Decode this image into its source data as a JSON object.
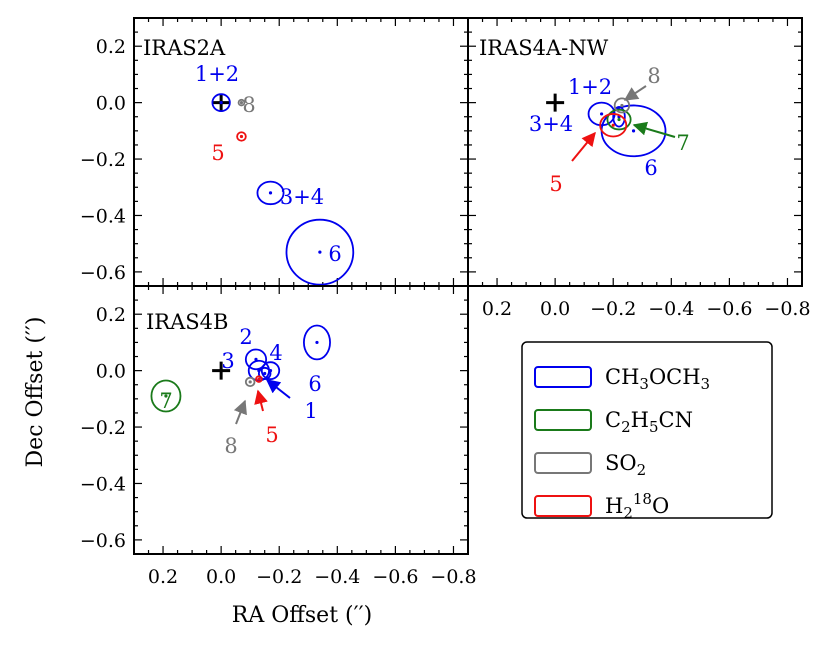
{
  "chart_data": {
    "type": "scatter",
    "xlabel": "RA Offset (′′)",
    "ylabel": "Dec Offset (′′)",
    "xlim": [
      0.3,
      -0.85
    ],
    "ylim": [
      -0.65,
      0.3
    ],
    "x_ticks": [
      0.2,
      0.0,
      -0.2,
      -0.4,
      -0.6,
      -0.8
    ],
    "x_tick_labels": [
      "0.2",
      "0.0",
      "−0.2",
      "−0.4",
      "−0.6",
      "−0.8"
    ],
    "y_ticks": [
      0.2,
      0.0,
      -0.2,
      -0.4,
      -0.6
    ],
    "y_tick_labels": [
      "0.2",
      "0.0",
      "−0.2",
      "−0.4",
      "−0.6"
    ],
    "colors": {
      "CH3OCH3": "#0000ee",
      "C2H5CN": "#1a7a1a",
      "SO2": "#777777",
      "H2_18O": "#ee1111",
      "source": "#000000"
    },
    "legend": {
      "placement": "lower-right",
      "entries": [
        {
          "key": "CH3OCH3",
          "parts": [
            [
              "CH",
              ""
            ],
            [
              "3",
              "sub"
            ],
            [
              "OCH",
              ""
            ],
            [
              "3",
              "sub"
            ]
          ]
        },
        {
          "key": "C2H5CN",
          "parts": [
            [
              "C",
              ""
            ],
            [
              "2",
              "sub"
            ],
            [
              "H",
              ""
            ],
            [
              "5",
              "sub"
            ],
            [
              "CN",
              ""
            ]
          ]
        },
        {
          "key": "SO2",
          "parts": [
            [
              "SO",
              ""
            ],
            [
              "2",
              "sub"
            ]
          ]
        },
        {
          "key": "H2_18O",
          "parts": [
            [
              "H",
              ""
            ],
            [
              "2",
              "sub"
            ],
            [
              "18",
              "sup"
            ],
            [
              "O",
              ""
            ]
          ]
        }
      ]
    },
    "panels": [
      {
        "name": "IRAS2A",
        "title": "IRAS2A",
        "show_x_ticklabels": false,
        "show_y_ticklabels": true,
        "components": [
          {
            "label": "1+2",
            "species": "CH3OCH3",
            "x": 0.0,
            "y": 0.0,
            "major": 0.06,
            "minor": 0.06
          },
          {
            "label": "8",
            "species": "SO2",
            "x": -0.07,
            "y": 0.0,
            "major": 0.02,
            "minor": 0.02
          },
          {
            "label": "5",
            "species": "H2_18O",
            "x": -0.07,
            "y": -0.12,
            "major": 0.03,
            "minor": 0.03
          },
          {
            "label": "3+4",
            "species": "CH3OCH3",
            "x": -0.17,
            "y": -0.32,
            "major": 0.09,
            "minor": 0.08
          },
          {
            "label": "6",
            "species": "CH3OCH3",
            "x": -0.34,
            "y": -0.53,
            "major": 0.23,
            "minor": 0.23
          }
        ]
      },
      {
        "name": "IRAS4A-NW",
        "title": "IRAS4A-NW",
        "show_x_ticklabels": true,
        "show_y_ticklabels": false,
        "components": [
          {
            "label": "1+2",
            "species": "CH3OCH3",
            "x": -0.16,
            "y": -0.04,
            "major": 0.09,
            "minor": 0.08
          },
          {
            "label": "3+4",
            "species": "CH3OCH3",
            "x": -0.22,
            "y": -0.05,
            "major": 0.04,
            "minor": 0.07
          },
          {
            "label": "6",
            "species": "CH3OCH3",
            "x": -0.27,
            "y": -0.1,
            "major": 0.22,
            "minor": 0.18
          },
          {
            "label": "7",
            "species": "C2H5CN",
            "x": -0.22,
            "y": -0.06,
            "major": 0.08,
            "minor": 0.07
          },
          {
            "label": "8",
            "species": "SO2",
            "x": -0.23,
            "y": -0.01,
            "major": 0.05,
            "minor": 0.05
          },
          {
            "label": "5",
            "species": "H2_18O",
            "x": -0.2,
            "y": -0.08,
            "major": 0.09,
            "minor": 0.08
          }
        ]
      },
      {
        "name": "IRAS4B",
        "title": "IRAS4B",
        "show_x_ticklabels": true,
        "show_y_ticklabels": true,
        "components": [
          {
            "label": "2",
            "species": "CH3OCH3",
            "x": -0.12,
            "y": 0.04,
            "major": 0.07,
            "minor": 0.07
          },
          {
            "label": "3",
            "species": "CH3OCH3",
            "x": -0.13,
            "y": 0.0,
            "major": 0.07,
            "minor": 0.07
          },
          {
            "label": "4",
            "species": "CH3OCH3",
            "x": -0.17,
            "y": 0.0,
            "major": 0.06,
            "minor": 0.06
          },
          {
            "label": "1",
            "species": "CH3OCH3",
            "x": -0.15,
            "y": -0.01,
            "major": 0.04,
            "minor": 0.04
          },
          {
            "label": "6",
            "species": "CH3OCH3",
            "x": -0.33,
            "y": 0.1,
            "major": 0.09,
            "minor": 0.12
          },
          {
            "label": "7",
            "species": "C2H5CN",
            "x": 0.19,
            "y": -0.09,
            "major": 0.1,
            "minor": 0.11
          },
          {
            "label": "8",
            "species": "SO2",
            "x": -0.1,
            "y": -0.04,
            "major": 0.03,
            "minor": 0.03
          },
          {
            "label": "5",
            "species": "H2_18O",
            "x": -0.13,
            "y": -0.03,
            "major": 0.02,
            "minor": 0.02
          }
        ]
      }
    ]
  }
}
